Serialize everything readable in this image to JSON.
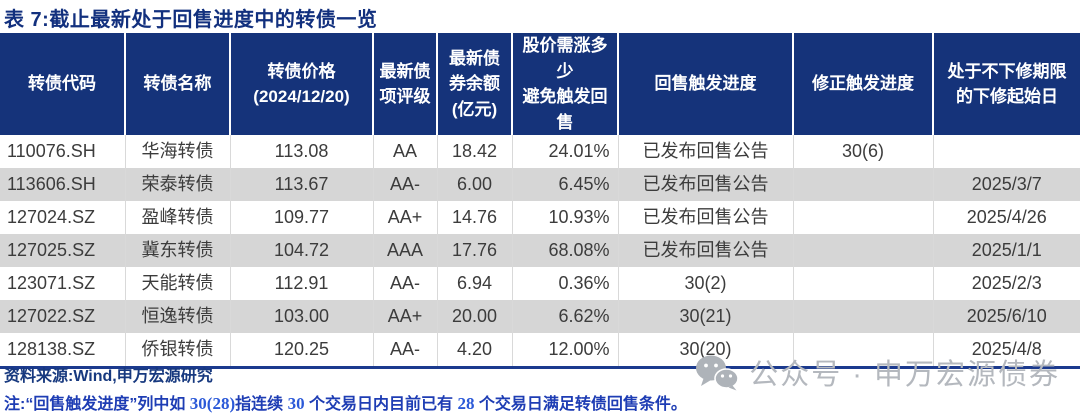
{
  "title": "表 7:截止最新处于回售进度中的转债一览",
  "table": {
    "columns": [
      {
        "key": "code",
        "label": "转债代码"
      },
      {
        "key": "name",
        "label": "转债名称"
      },
      {
        "key": "price",
        "label": "转债价格\n(2024/12/20)"
      },
      {
        "key": "rating",
        "label": "最新债\n项评级"
      },
      {
        "key": "balance",
        "label": "最新债\n券余额\n(亿元)"
      },
      {
        "key": "rise-needed",
        "label": "股价需涨多少\n避免触发回售"
      },
      {
        "key": "put-trigger",
        "label": "回售触发进度"
      },
      {
        "key": "revision-trigger",
        "label": "修正触发进度"
      },
      {
        "key": "reset-start-date",
        "label": "处于不下修期限\n的下修起始日"
      }
    ],
    "rows": [
      [
        "110076.SH",
        "华海转债",
        "113.08",
        "AA",
        "18.42",
        "24.01%",
        "已发布回售公告",
        "30(6)",
        ""
      ],
      [
        "113606.SH",
        "荣泰转债",
        "113.67",
        "AA-",
        "6.00",
        "6.45%",
        "已发布回售公告",
        "",
        "2025/3/7"
      ],
      [
        "127024.SZ",
        "盈峰转债",
        "109.77",
        "AA+",
        "14.76",
        "10.93%",
        "已发布回售公告",
        "",
        "2025/4/26"
      ],
      [
        "127025.SZ",
        "冀东转债",
        "104.72",
        "AAA",
        "17.76",
        "68.08%",
        "已发布回售公告",
        "",
        "2025/1/1"
      ],
      [
        "123071.SZ",
        "天能转债",
        "112.91",
        "AA-",
        "6.94",
        "0.36%",
        "30(2)",
        "",
        "2025/2/3"
      ],
      [
        "127022.SZ",
        "恒逸转债",
        "103.00",
        "AA+",
        "20.00",
        "6.62%",
        "30(21)",
        "",
        "2025/6/10"
      ],
      [
        "128138.SZ",
        "侨银转债",
        "120.25",
        "AA-",
        "4.20",
        "12.00%",
        "30(20)",
        "",
        "2025/4/8"
      ]
    ]
  },
  "footer": {
    "source": "资料来源:Wind,申万宏源研究",
    "note_segments": [
      {
        "type": "cjk",
        "text": "注:“回售触发进度”列中如 "
      },
      {
        "type": "num",
        "text": "30(28)"
      },
      {
        "type": "cjk",
        "text": "指连续 "
      },
      {
        "type": "num",
        "text": "30"
      },
      {
        "type": "cjk",
        "text": " 个交易日内目前已有 "
      },
      {
        "type": "num",
        "text": "28"
      },
      {
        "type": "cjk",
        "text": " 个交易日满足转债回售条件。"
      }
    ]
  },
  "watermark": {
    "icon": "wechat-icon",
    "label": "公众号 · 申万宏源债券"
  },
  "colors": {
    "header_bg": "#15337a",
    "title": "#12307e",
    "stripe": "#d6d6d6",
    "bottom_rule": "#1b3a8e",
    "source_text": "#17397f",
    "note_text": "#1e3db4",
    "note_numbers": "#2b59d8",
    "watermark": "#b4b8be"
  }
}
